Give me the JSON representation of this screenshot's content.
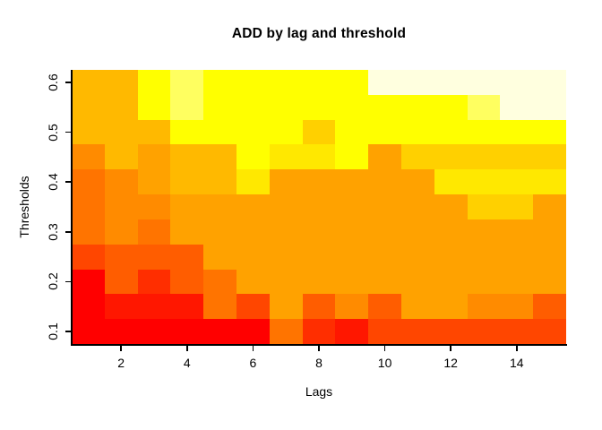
{
  "chart_data": {
    "type": "heatmap",
    "title": "ADD by lag and threshold",
    "xlabel": "Lags",
    "ylabel": "Thresholds",
    "x_tick_labels": [
      "2",
      "4",
      "6",
      "8",
      "10",
      "12",
      "14"
    ],
    "x_tick_values": [
      2,
      4,
      6,
      8,
      10,
      12,
      14
    ],
    "y_tick_labels": [
      "0.1",
      "0.2",
      "0.3",
      "0.4",
      "0.5",
      "0.6"
    ],
    "y_tick_values": [
      0.1,
      0.2,
      0.3,
      0.4,
      0.5,
      0.6
    ],
    "x_values_lags": [
      1,
      2,
      3,
      4,
      5,
      6,
      7,
      8,
      9,
      10,
      11,
      12,
      13,
      14,
      15
    ],
    "x_range": [
      0.5,
      15.5
    ],
    "y_range": [
      0.075,
      0.625
    ],
    "grid": false,
    "legend": "none",
    "palette": {
      "red": "#FF0000",
      "red2": "#FF1700",
      "redorange1": "#FF2E00",
      "redorange2": "#FF4600",
      "orange1": "#FF5D00",
      "orange2": "#FF7400",
      "orange3": "#FF8B00",
      "orange4": "#FFA200",
      "amber": "#FFB900",
      "gold": "#FFD000",
      "lightgold": "#FFE800",
      "yellow": "#FFFF00",
      "paleyellow": "#FFFF60",
      "cream": "#FFFFDF"
    },
    "rows_top_to_bottom": [
      {
        "threshold": 0.6,
        "cells": [
          "amber",
          "amber",
          "yellow",
          "paleyellow",
          "yellow",
          "yellow",
          "yellow",
          "yellow",
          "yellow",
          "cream",
          "cream",
          "cream",
          "cream",
          "cream",
          "cream"
        ]
      },
      {
        "threshold": 0.55,
        "cells": [
          "amber",
          "amber",
          "yellow",
          "paleyellow",
          "yellow",
          "yellow",
          "yellow",
          "yellow",
          "yellow",
          "yellow",
          "yellow",
          "yellow",
          "paleyellow",
          "cream",
          "cream"
        ]
      },
      {
        "threshold": 0.5,
        "cells": [
          "amber",
          "amber",
          "amber",
          "yellow",
          "yellow",
          "yellow",
          "yellow",
          "gold",
          "yellow",
          "yellow",
          "yellow",
          "yellow",
          "yellow",
          "yellow",
          "yellow"
        ]
      },
      {
        "threshold": 0.45,
        "cells": [
          "orange3",
          "amber",
          "orange4",
          "amber",
          "amber",
          "yellow",
          "lightgold",
          "lightgold",
          "yellow",
          "orange4",
          "gold",
          "gold",
          "gold",
          "gold",
          "gold"
        ]
      },
      {
        "threshold": 0.4,
        "cells": [
          "orange2",
          "orange3",
          "orange4",
          "amber",
          "amber",
          "lightgold",
          "orange4",
          "orange4",
          "orange4",
          "orange4",
          "orange4",
          "lightgold",
          "lightgold",
          "lightgold",
          "lightgold"
        ]
      },
      {
        "threshold": 0.35,
        "cells": [
          "orange2",
          "orange3",
          "orange3",
          "orange4",
          "orange4",
          "orange4",
          "orange4",
          "orange4",
          "orange4",
          "orange4",
          "orange4",
          "orange4",
          "gold",
          "gold",
          "orange4"
        ]
      },
      {
        "threshold": 0.3,
        "cells": [
          "orange2",
          "orange3",
          "orange2",
          "orange4",
          "orange4",
          "orange4",
          "orange4",
          "orange4",
          "orange4",
          "orange4",
          "orange4",
          "orange4",
          "orange4",
          "orange4",
          "orange4"
        ]
      },
      {
        "threshold": 0.25,
        "cells": [
          "redorange2",
          "orange1",
          "orange1",
          "orange1",
          "orange4",
          "orange4",
          "orange4",
          "orange4",
          "orange4",
          "orange4",
          "orange4",
          "orange4",
          "orange4",
          "orange4",
          "orange4"
        ]
      },
      {
        "threshold": 0.2,
        "cells": [
          "red",
          "orange1",
          "redorange1",
          "orange1",
          "orange2",
          "orange4",
          "orange4",
          "orange4",
          "orange4",
          "orange4",
          "orange4",
          "orange4",
          "orange4",
          "orange4",
          "orange4"
        ]
      },
      {
        "threshold": 0.15,
        "cells": [
          "red",
          "red2",
          "red2",
          "red2",
          "orange2",
          "redorange2",
          "orange4",
          "orange1",
          "orange3",
          "orange1",
          "orange4",
          "orange4",
          "orange3",
          "orange3",
          "orange1"
        ]
      },
      {
        "threshold": 0.1,
        "cells": [
          "red",
          "red",
          "red",
          "red",
          "red",
          "red",
          "orange2",
          "redorange1",
          "red2",
          "redorange2",
          "redorange2",
          "redorange2",
          "redorange2",
          "redorange2",
          "redorange2"
        ]
      }
    ]
  }
}
